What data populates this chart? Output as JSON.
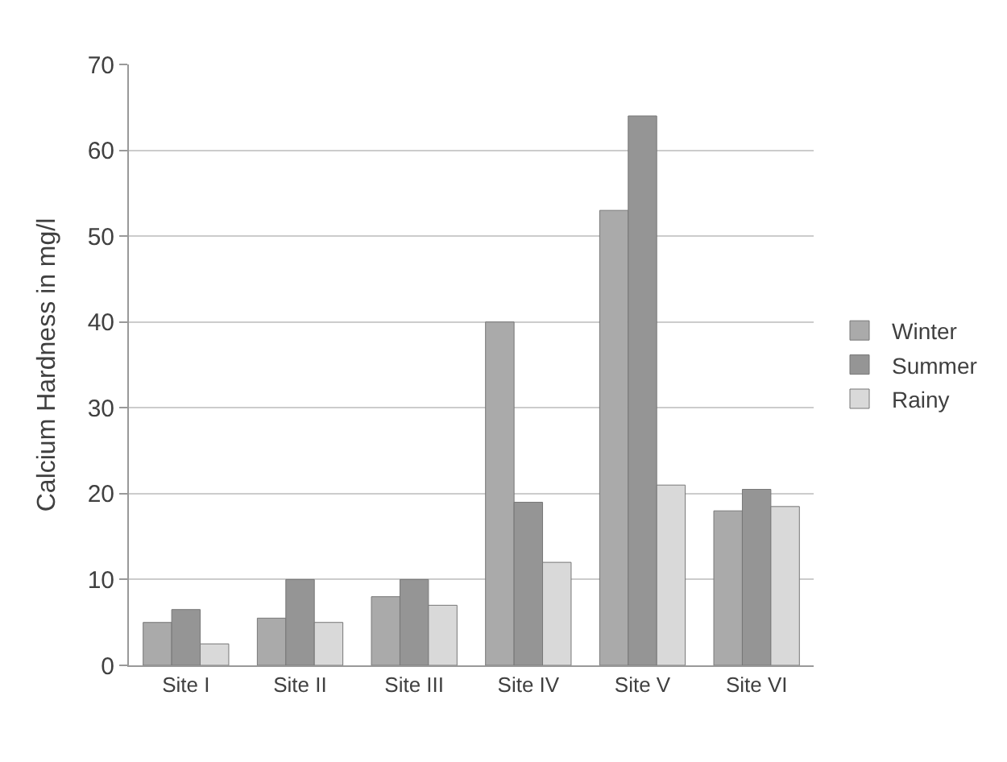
{
  "chart_data": {
    "type": "bar",
    "ylabel": "Calcium Hardness in mg/l",
    "categories": [
      "Site I",
      "Site II",
      "Site III",
      "Site IV",
      "Site V",
      "Site VI"
    ],
    "series": [
      {
        "name": "Winter",
        "color": "#aaaaaa",
        "values": [
          5,
          5.5,
          8,
          40,
          53,
          18
        ]
      },
      {
        "name": "Summer",
        "color": "#959595",
        "values": [
          6.5,
          10,
          10,
          19,
          64,
          20.5
        ]
      },
      {
        "name": "Rainy",
        "color": "#d9d9d9",
        "values": [
          2.5,
          5,
          7,
          12,
          21,
          18.5
        ]
      }
    ],
    "ylim": [
      0,
      70
    ],
    "yticks": [
      0,
      10,
      20,
      30,
      40,
      50,
      60,
      70
    ],
    "grid": "y",
    "legend": "right"
  }
}
